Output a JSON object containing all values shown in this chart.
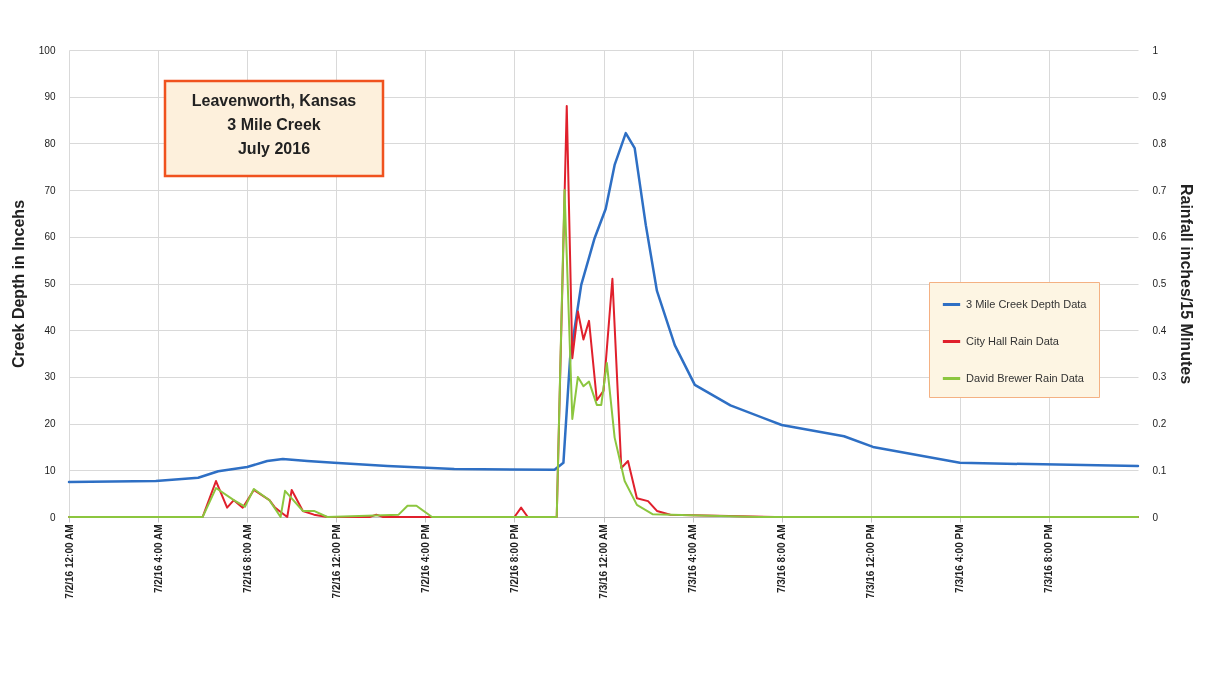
{
  "chart_data": {
    "type": "line",
    "title": "Leavenworth, Kansas\n3 Mile Creek\nJuly 2016",
    "ylabel": "Creek Depth in Incehs",
    "y2label": "Rainfall inches/15 Minutes",
    "xlim": [
      "2016-07-02T00:00",
      "2016-07-04T00:00"
    ],
    "xticks": [
      {
        "value": "2016-07-02T00:00",
        "label": "7/2/16 12:00 AM"
      },
      {
        "value": "2016-07-02T04:00",
        "label": "7/2/16 4:00 AM"
      },
      {
        "value": "2016-07-02T08:00",
        "label": "7/2/16 8:00 AM"
      },
      {
        "value": "2016-07-02T12:00",
        "label": "7/2/16 12:00 PM"
      },
      {
        "value": "2016-07-02T16:00",
        "label": "7/2/16 4:00 PM"
      },
      {
        "value": "2016-07-02T20:00",
        "label": "7/2/16 8:00 PM"
      },
      {
        "value": "2016-07-03T00:00",
        "label": "7/3/16 12:00 AM"
      },
      {
        "value": "2016-07-03T04:00",
        "label": "7/3/16 4:00 AM"
      },
      {
        "value": "2016-07-03T08:00",
        "label": "7/3/16 8:00 AM"
      },
      {
        "value": "2016-07-03T12:00",
        "label": "7/3/16 12:00 PM"
      },
      {
        "value": "2016-07-03T16:00",
        "label": "7/3/16 4:00 PM"
      },
      {
        "value": "2016-07-03T20:00",
        "label": "7/3/16 8:00 PM"
      }
    ],
    "ylim": [
      0,
      100
    ],
    "yticks": [
      0,
      10,
      20,
      30,
      40,
      50,
      60,
      70,
      80,
      90,
      100
    ],
    "y2lim": [
      0,
      1
    ],
    "y2ticks": [
      0,
      0.1,
      0.2,
      0.3,
      0.4,
      0.5,
      0.6,
      0.7,
      0.8,
      0.9,
      1
    ],
    "grid": true,
    "legend": "right",
    "marker": "none",
    "line_style": "solid",
    "series": [
      {
        "name": "3 Mile Creek Depth Data",
        "color": "#2e6fc4",
        "x": [
          "2016-07-02T00:00",
          "2016-07-02T03:54",
          "2016-07-02T05:48",
          "2016-07-02T06:42",
          "2016-07-02T08:00",
          "2016-07-02T08:54",
          "2016-07-02T09:36",
          "2016-07-02T10:42",
          "2016-07-02T11:54",
          "2016-07-02T14:18",
          "2016-07-02T17:18",
          "2016-07-02T21:48",
          "2016-07-02T22:12",
          "2016-07-02T22:30",
          "2016-07-02T23:00",
          "2016-07-02T23:36",
          "2016-07-03T00:06",
          "2016-07-03T00:30",
          "2016-07-03T01:00",
          "2016-07-03T01:24",
          "2016-07-03T01:54",
          "2016-07-03T02:24",
          "2016-07-03T03:12",
          "2016-07-03T04:06",
          "2016-07-03T05:42",
          "2016-07-03T08:00",
          "2016-07-03T10:48",
          "2016-07-03T12:06",
          "2016-07-03T16:00",
          "2016-07-04T00:00"
        ],
        "values": [
          7.5,
          7.7,
          8.4,
          9.8,
          10.7,
          12,
          12.4,
          12,
          11.6,
          10.9,
          10.3,
          10.1,
          11.6,
          34,
          49.7,
          59.7,
          66,
          75.4,
          82.2,
          79,
          62.5,
          48.4,
          36.8,
          28.3,
          23.9,
          19.7,
          17.3,
          15,
          11.6,
          10.9
        ]
      },
      {
        "name": "City Hall Rain Data",
        "color": "#e0202c",
        "axis": "y2",
        "x": [
          "2016-07-02T00:00",
          "2016-07-02T06:00",
          "2016-07-02T06:36",
          "2016-07-02T07:06",
          "2016-07-02T07:24",
          "2016-07-02T07:48",
          "2016-07-02T08:18",
          "2016-07-02T09:00",
          "2016-07-02T09:15",
          "2016-07-02T09:48",
          "2016-07-02T10:00",
          "2016-07-02T10:30",
          "2016-07-02T11:00",
          "2016-07-02T11:36",
          "2016-07-02T13:30",
          "2016-07-02T13:48",
          "2016-07-02T14:06",
          "2016-07-02T20:00",
          "2016-07-02T20:18",
          "2016-07-02T20:36",
          "2016-07-02T21:54",
          "2016-07-02T22:21",
          "2016-07-02T22:36",
          "2016-07-02T22:51",
          "2016-07-02T23:06",
          "2016-07-02T23:21",
          "2016-07-02T23:42",
          "2016-07-03T00:00",
          "2016-07-03T00:24",
          "2016-07-03T00:48",
          "2016-07-03T01:06",
          "2016-07-03T01:30",
          "2016-07-03T02:00",
          "2016-07-03T02:24",
          "2016-07-03T03:00",
          "2016-07-03T07:42",
          "2016-07-04T00:00"
        ],
        "values": [
          0,
          0,
          0.077,
          0.02,
          0.036,
          0.02,
          0.058,
          0.036,
          0.02,
          0,
          0.058,
          0.013,
          0.005,
          0,
          0,
          0.005,
          0,
          0,
          0.02,
          0,
          0,
          0.88,
          0.34,
          0.44,
          0.38,
          0.42,
          0.25,
          0.27,
          0.51,
          0.105,
          0.12,
          0.04,
          0.034,
          0.013,
          0.005,
          0,
          0
        ]
      },
      {
        "name": "David Brewer Rain Data",
        "color": "#8cc63f",
        "axis": "y2",
        "x": [
          "2016-07-02T00:00",
          "2016-07-02T06:00",
          "2016-07-02T06:36",
          "2016-07-02T07:24",
          "2016-07-02T07:54",
          "2016-07-02T08:18",
          "2016-07-02T09:00",
          "2016-07-02T09:30",
          "2016-07-02T09:42",
          "2016-07-02T10:30",
          "2016-07-02T11:00",
          "2016-07-02T11:36",
          "2016-07-02T14:48",
          "2016-07-02T15:12",
          "2016-07-02T15:36",
          "2016-07-02T16:18",
          "2016-07-02T21:54",
          "2016-07-02T22:15",
          "2016-07-02T22:36",
          "2016-07-02T22:51",
          "2016-07-02T23:06",
          "2016-07-02T23:21",
          "2016-07-02T23:42",
          "2016-07-02T23:54",
          "2016-07-03T00:09",
          "2016-07-03T00:30",
          "2016-07-03T00:57",
          "2016-07-03T01:30",
          "2016-07-03T02:12",
          "2016-07-03T07:00",
          "2016-07-04T00:00"
        ],
        "values": [
          0,
          0,
          0.062,
          0.036,
          0.022,
          0.06,
          0.036,
          0,
          0.056,
          0.013,
          0.013,
          0,
          0.005,
          0.024,
          0.024,
          0,
          0,
          0.7,
          0.21,
          0.3,
          0.28,
          0.29,
          0.24,
          0.24,
          0.33,
          0.17,
          0.077,
          0.026,
          0.006,
          0,
          0
        ]
      }
    ]
  }
}
